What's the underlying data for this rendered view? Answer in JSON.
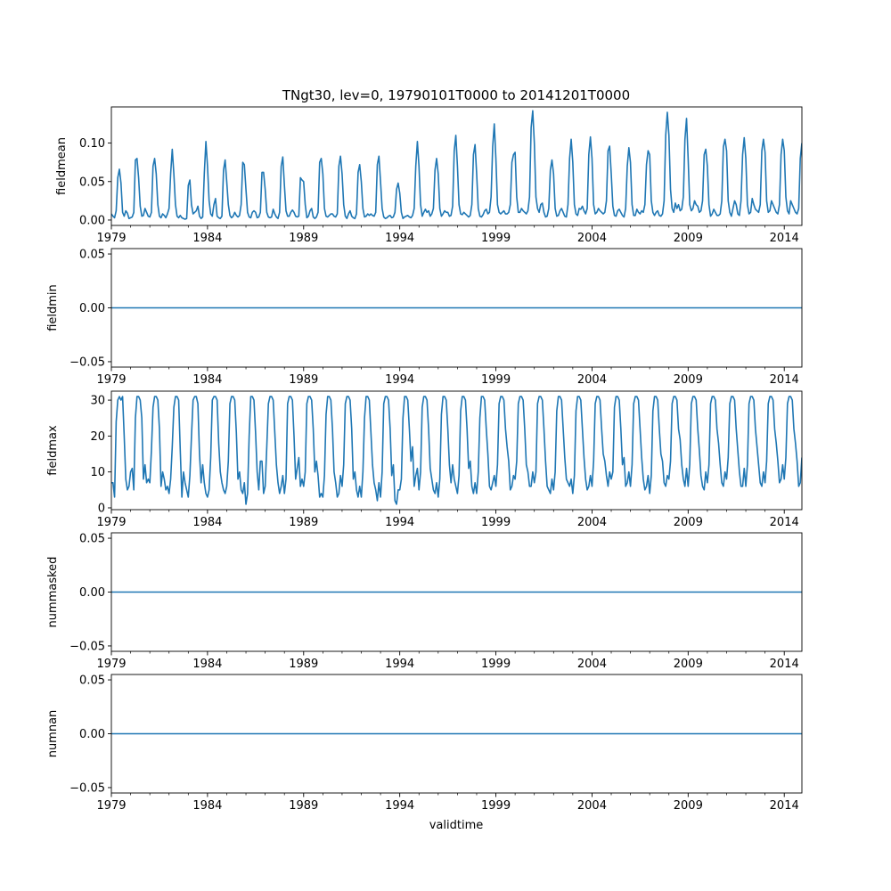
{
  "figure": {
    "title": "TNgt30, lev=0, 19790101T0000 to 20141201T0000",
    "xlabel": "validtime"
  },
  "chart_data": [
    {
      "type": "line",
      "ylabel": "fieldmean",
      "xlim": [
        1979.0,
        2014.917
      ],
      "ylim": [
        -0.007,
        0.147
      ],
      "yticks": [
        0.0,
        0.05,
        0.1
      ],
      "ytick_labels": [
        "0.00",
        "0.05",
        "0.10"
      ],
      "xticks": [
        1979,
        1984,
        1989,
        1994,
        1999,
        2004,
        2009,
        2014
      ],
      "xtick_labels": [
        "1979",
        "1984",
        "1989",
        "1994",
        "1999",
        "2004",
        "2009",
        "2014"
      ],
      "color": "#1f77b4",
      "series": [
        {
          "name": "fieldmean",
          "start_year": 1979.0,
          "step_months": 1,
          "values": [
            0.008,
            0.005,
            0.003,
            0.012,
            0.055,
            0.066,
            0.048,
            0.01,
            0.005,
            0.012,
            0.009,
            0.002,
            0.003,
            0.004,
            0.01,
            0.078,
            0.08,
            0.055,
            0.018,
            0.005,
            0.006,
            0.015,
            0.01,
            0.005,
            0.004,
            0.01,
            0.07,
            0.08,
            0.06,
            0.02,
            0.005,
            0.003,
            0.008,
            0.006,
            0.003,
            0.008,
            0.015,
            0.06,
            0.092,
            0.06,
            0.02,
            0.005,
            0.003,
            0.006,
            0.003,
            0.002,
            0.001,
            0.002,
            0.045,
            0.052,
            0.02,
            0.008,
            0.01,
            0.012,
            0.018,
            0.005,
            0.002,
            0.004,
            0.06,
            0.102,
            0.07,
            0.025,
            0.008,
            0.005,
            0.02,
            0.028,
            0.005,
            0.003,
            0.002,
            0.005,
            0.065,
            0.078,
            0.05,
            0.02,
            0.006,
            0.003,
            0.005,
            0.01,
            0.006,
            0.004,
            0.006,
            0.02,
            0.075,
            0.072,
            0.04,
            0.01,
            0.004,
            0.003,
            0.01,
            0.012,
            0.01,
            0.003,
            0.004,
            0.01,
            0.062,
            0.062,
            0.04,
            0.01,
            0.004,
            0.003,
            0.004,
            0.014,
            0.008,
            0.004,
            0.002,
            0.01,
            0.07,
            0.082,
            0.045,
            0.012,
            0.005,
            0.005,
            0.01,
            0.013,
            0.01,
            0.005,
            0.004,
            0.005,
            0.055,
            0.052,
            0.05,
            0.02,
            0.003,
            0.005,
            0.012,
            0.015,
            0.004,
            0.002,
            0.004,
            0.01,
            0.075,
            0.08,
            0.06,
            0.015,
            0.005,
            0.004,
            0.006,
            0.008,
            0.008,
            0.005,
            0.004,
            0.008,
            0.07,
            0.083,
            0.06,
            0.02,
            0.005,
            0.002,
            0.008,
            0.012,
            0.005,
            0.003,
            0.002,
            0.008,
            0.062,
            0.072,
            0.05,
            0.015,
            0.004,
            0.005,
            0.008,
            0.006,
            0.008,
            0.006,
            0.005,
            0.01,
            0.072,
            0.083,
            0.05,
            0.015,
            0.004,
            0.002,
            0.003,
            0.005,
            0.006,
            0.003,
            0.004,
            0.01,
            0.04,
            0.048,
            0.035,
            0.01,
            0.002,
            0.004,
            0.005,
            0.006,
            0.004,
            0.003,
            0.006,
            0.015,
            0.07,
            0.102,
            0.07,
            0.02,
            0.005,
            0.01,
            0.014,
            0.01,
            0.012,
            0.005,
            0.008,
            0.015,
            0.065,
            0.08,
            0.06,
            0.015,
            0.005,
            0.008,
            0.012,
            0.01,
            0.01,
            0.005,
            0.006,
            0.018,
            0.09,
            0.11,
            0.07,
            0.02,
            0.008,
            0.007,
            0.01,
            0.008,
            0.006,
            0.004,
            0.006,
            0.02,
            0.085,
            0.098,
            0.06,
            0.015,
            0.005,
            0.004,
            0.007,
            0.012,
            0.014,
            0.008,
            0.01,
            0.03,
            0.095,
            0.125,
            0.08,
            0.02,
            0.01,
            0.008,
            0.01,
            0.012,
            0.008,
            0.008,
            0.01,
            0.02,
            0.075,
            0.085,
            0.088,
            0.03,
            0.01,
            0.01,
            0.015,
            0.012,
            0.01,
            0.008,
            0.012,
            0.03,
            0.12,
            0.142,
            0.1,
            0.03,
            0.015,
            0.01,
            0.02,
            0.022,
            0.01,
            0.004,
            0.005,
            0.015,
            0.065,
            0.078,
            0.06,
            0.015,
            0.005,
            0.006,
            0.012,
            0.015,
            0.01,
            0.005,
            0.004,
            0.02,
            0.08,
            0.105,
            0.075,
            0.02,
            0.008,
            0.006,
            0.015,
            0.014,
            0.018,
            0.012,
            0.008,
            0.015,
            0.085,
            0.108,
            0.08,
            0.02,
            0.008,
            0.01,
            0.015,
            0.012,
            0.01,
            0.008,
            0.01,
            0.025,
            0.09,
            0.096,
            0.06,
            0.018,
            0.006,
            0.005,
            0.012,
            0.014,
            0.01,
            0.006,
            0.004,
            0.015,
            0.07,
            0.094,
            0.075,
            0.02,
            0.006,
            0.006,
            0.014,
            0.01,
            0.008,
            0.012,
            0.01,
            0.02,
            0.072,
            0.09,
            0.085,
            0.025,
            0.01,
            0.006,
            0.01,
            0.012,
            0.006,
            0.005,
            0.008,
            0.025,
            0.11,
            0.14,
            0.11,
            0.04,
            0.015,
            0.01,
            0.022,
            0.015,
            0.02,
            0.012,
            0.014,
            0.03,
            0.105,
            0.132,
            0.08,
            0.02,
            0.012,
            0.015,
            0.025,
            0.02,
            0.018,
            0.01,
            0.012,
            0.025,
            0.085,
            0.092,
            0.07,
            0.02,
            0.005,
            0.008,
            0.014,
            0.01,
            0.006,
            0.006,
            0.008,
            0.025,
            0.095,
            0.105,
            0.09,
            0.025,
            0.01,
            0.005,
            0.015,
            0.025,
            0.02,
            0.008,
            0.006,
            0.025,
            0.085,
            0.107,
            0.08,
            0.02,
            0.008,
            0.01,
            0.028,
            0.02,
            0.014,
            0.012,
            0.01,
            0.02,
            0.09,
            0.105,
            0.088,
            0.025,
            0.01,
            0.012,
            0.025,
            0.02,
            0.015,
            0.01,
            0.008,
            0.02,
            0.085,
            0.105,
            0.09,
            0.03,
            0.012,
            0.008,
            0.025,
            0.02,
            0.015,
            0.01,
            0.008,
            0.015,
            0.08,
            0.1
          ]
        }
      ]
    },
    {
      "type": "line",
      "ylabel": "fieldmin",
      "xlim": [
        1979.0,
        2014.917
      ],
      "ylim": [
        -0.055,
        0.055
      ],
      "yticks": [
        -0.05,
        0.0,
        0.05
      ],
      "ytick_labels": [
        "−0.05",
        "0.00",
        "0.05"
      ],
      "xticks": [
        1979,
        1984,
        1989,
        1994,
        1999,
        2004,
        2009,
        2014
      ],
      "xtick_labels": [
        "1979",
        "1984",
        "1989",
        "1994",
        "1999",
        "2004",
        "2009",
        "2014"
      ],
      "color": "#1f77b4",
      "series": [
        {
          "name": "fieldmin",
          "constant": 0.0
        }
      ]
    },
    {
      "type": "line",
      "ylabel": "fieldmax",
      "xlim": [
        1979.0,
        2014.917
      ],
      "ylim": [
        -0.5,
        32.5
      ],
      "yticks": [
        0,
        10,
        20,
        30
      ],
      "ytick_labels": [
        "0",
        "10",
        "20",
        "30"
      ],
      "xticks": [
        1979,
        1984,
        1989,
        1994,
        1999,
        2004,
        2009,
        2014
      ],
      "xtick_labels": [
        "1979",
        "1984",
        "1989",
        "1994",
        "1999",
        "2004",
        "2009",
        "2014"
      ],
      "color": "#1f77b4",
      "series": [
        {
          "name": "fieldmax",
          "start_year": 1979.0,
          "step_months": 1,
          "values": [
            7,
            7,
            3,
            24,
            30,
            31,
            30,
            31,
            20,
            8,
            5,
            6,
            10,
            11,
            5,
            25,
            31,
            31,
            30,
            25,
            8,
            12,
            7,
            8,
            7,
            16,
            28,
            31,
            31,
            30,
            22,
            6,
            10,
            8,
            5,
            6,
            4,
            8,
            17,
            28,
            31,
            31,
            30,
            16,
            3,
            10,
            7,
            5,
            3,
            9,
            20,
            30,
            31,
            31,
            29,
            15,
            7,
            12,
            7,
            4,
            3,
            5,
            14,
            30,
            31,
            31,
            30,
            18,
            10,
            7,
            5,
            4,
            6,
            13,
            29,
            31,
            31,
            30,
            21,
            8,
            10,
            5,
            4,
            7,
            1,
            4,
            20,
            31,
            31,
            30,
            21,
            10,
            5,
            13,
            13,
            4,
            6,
            17,
            29,
            31,
            31,
            30,
            21,
            12,
            7,
            4,
            6,
            9,
            4,
            8,
            29,
            31,
            31,
            30,
            20,
            8,
            11,
            14,
            6,
            8,
            6,
            10,
            29,
            31,
            31,
            30,
            22,
            10,
            13,
            9,
            3,
            4,
            3,
            9,
            26,
            31,
            31,
            30,
            22,
            10,
            7,
            3,
            4,
            9,
            6,
            12,
            29,
            31,
            31,
            30,
            22,
            8,
            10,
            5,
            3,
            6,
            3,
            10,
            25,
            31,
            31,
            30,
            21,
            12,
            7,
            5,
            2,
            7,
            3,
            10,
            29,
            31,
            31,
            30,
            22,
            9,
            12,
            2,
            1,
            5,
            5,
            8,
            25,
            31,
            31,
            30,
            22,
            13,
            17,
            6,
            9,
            11,
            5,
            10,
            28,
            31,
            31,
            30,
            22,
            11,
            8,
            5,
            4,
            7,
            3,
            8,
            26,
            31,
            31,
            30,
            22,
            12,
            7,
            12,
            8,
            6,
            4,
            9,
            27,
            31,
            31,
            30,
            22,
            11,
            13,
            6,
            4,
            7,
            4,
            10,
            25,
            31,
            31,
            30,
            22,
            15,
            6,
            5,
            7,
            9,
            6,
            12,
            29,
            31,
            31,
            30,
            22,
            17,
            13,
            5,
            6,
            9,
            8,
            13,
            29,
            31,
            31,
            30,
            22,
            12,
            10,
            6,
            6,
            10,
            7,
            10,
            29,
            31,
            31,
            30,
            22,
            13,
            6,
            5,
            4,
            8,
            5,
            10,
            27,
            31,
            31,
            30,
            22,
            14,
            8,
            7,
            6,
            8,
            4,
            9,
            27,
            31,
            31,
            30,
            22,
            14,
            8,
            5,
            6,
            9,
            6,
            13,
            29,
            31,
            31,
            30,
            22,
            15,
            13,
            9,
            6,
            10,
            8,
            10,
            28,
            31,
            31,
            30,
            22,
            12,
            14,
            6,
            7,
            10,
            6,
            12,
            29,
            31,
            31,
            30,
            22,
            14,
            8,
            5,
            6,
            9,
            4,
            9,
            27,
            31,
            31,
            30,
            22,
            15,
            13,
            7,
            6,
            9,
            8,
            13,
            29,
            31,
            31,
            30,
            22,
            19,
            12,
            8,
            6,
            11,
            6,
            12,
            29,
            31,
            31,
            30,
            22,
            16,
            9,
            6,
            5,
            10,
            7,
            12,
            29,
            31,
            31,
            30,
            22,
            18,
            12,
            7,
            6,
            10,
            8,
            14,
            29,
            31,
            31,
            30,
            22,
            16,
            10,
            6,
            6,
            11,
            6,
            12,
            29,
            31,
            31,
            30,
            22,
            17,
            12,
            7,
            6,
            10,
            7,
            13,
            29,
            31,
            31,
            30,
            22,
            18,
            13,
            7,
            8,
            12,
            8,
            14,
            29,
            31,
            31,
            30,
            22,
            18,
            13,
            6,
            7,
            14
          ]
        }
      ]
    },
    {
      "type": "line",
      "ylabel": "nummasked",
      "xlim": [
        1979.0,
        2014.917
      ],
      "ylim": [
        -0.055,
        0.055
      ],
      "yticks": [
        -0.05,
        0.0,
        0.05
      ],
      "ytick_labels": [
        "−0.05",
        "0.00",
        "0.05"
      ],
      "xticks": [
        1979,
        1984,
        1989,
        1994,
        1999,
        2004,
        2009,
        2014
      ],
      "xtick_labels": [
        "1979",
        "1984",
        "1989",
        "1994",
        "1999",
        "2004",
        "2009",
        "2014"
      ],
      "color": "#1f77b4",
      "series": [
        {
          "name": "nummasked",
          "constant": 0.0
        }
      ]
    },
    {
      "type": "line",
      "ylabel": "numnan",
      "xlim": [
        1979.0,
        2014.917
      ],
      "ylim": [
        -0.055,
        0.055
      ],
      "yticks": [
        -0.05,
        0.0,
        0.05
      ],
      "ytick_labels": [
        "−0.05",
        "0.00",
        "0.05"
      ],
      "xticks": [
        1979,
        1984,
        1989,
        1994,
        1999,
        2004,
        2009,
        2014
      ],
      "xtick_labels": [
        "1979",
        "1984",
        "1989",
        "1994",
        "1999",
        "2004",
        "2009",
        "2014"
      ],
      "color": "#1f77b4",
      "series": [
        {
          "name": "numnan",
          "constant": 0.0
        }
      ]
    }
  ]
}
